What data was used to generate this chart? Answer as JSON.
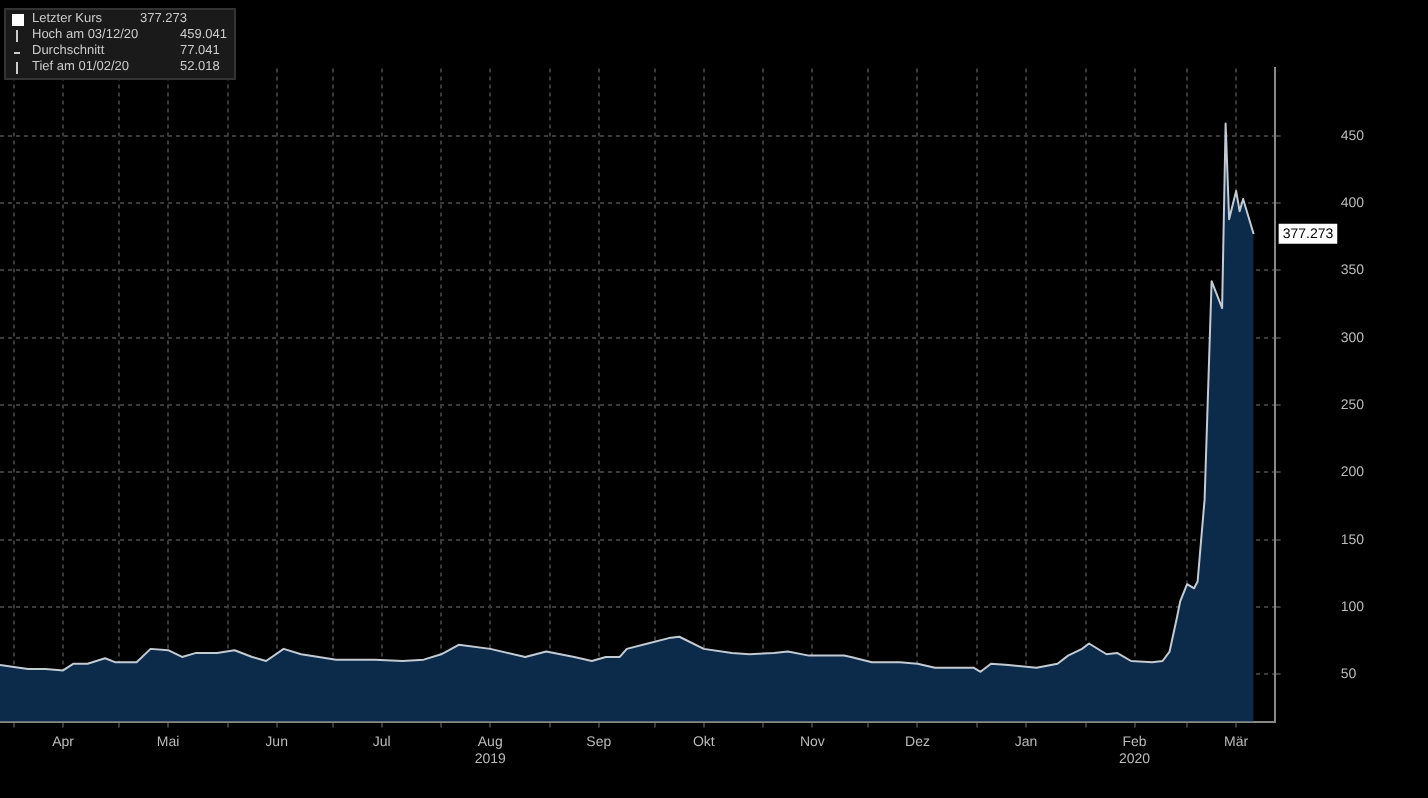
{
  "chart_data": {
    "type": "area",
    "x": [
      "2019-03-28",
      "2019-04-05",
      "2019-04-10",
      "2019-04-15",
      "2019-04-18",
      "2019-04-22",
      "2019-04-27",
      "2019-04-30",
      "2019-05-06",
      "2019-05-10",
      "2019-05-15",
      "2019-05-19",
      "2019-05-23",
      "2019-05-29",
      "2019-06-03",
      "2019-06-08",
      "2019-06-12",
      "2019-06-17",
      "2019-06-22",
      "2019-07-02",
      "2019-07-13",
      "2019-07-21",
      "2019-07-27",
      "2019-08-01",
      "2019-08-06",
      "2019-08-15",
      "2019-08-25",
      "2019-08-31",
      "2019-09-08",
      "2019-09-13",
      "2019-09-17",
      "2019-09-21",
      "2019-09-23",
      "2019-09-29",
      "2019-10-05",
      "2019-10-08",
      "2019-10-15",
      "2019-10-23",
      "2019-10-28",
      "2019-11-04",
      "2019-11-08",
      "2019-11-14",
      "2019-11-24",
      "2019-11-26",
      "2019-12-02",
      "2019-12-10",
      "2019-12-15",
      "2019-12-20",
      "2019-12-31",
      "2020-01-02",
      "2020-01-05",
      "2020-01-10",
      "2020-01-18",
      "2020-01-24",
      "2020-01-27",
      "2020-01-31",
      "2020-02-02",
      "2020-02-07",
      "2020-02-10",
      "2020-02-14",
      "2020-02-20",
      "2020-02-23",
      "2020-02-25",
      "2020-02-27",
      "2020-02-28",
      "2020-03-01",
      "2020-03-03",
      "2020-03-04",
      "2020-03-06",
      "2020-03-08",
      "2020-03-11",
      "2020-03-12",
      "2020-03-13",
      "2020-03-15",
      "2020-03-16",
      "2020-03-17",
      "2020-03-20"
    ],
    "series": [
      {
        "name": "Letzter Kurs",
        "color": "#0c2a4a",
        "values": [
          57,
          54,
          54,
          53,
          58,
          58,
          62,
          59,
          59,
          69,
          68,
          63,
          66,
          66,
          68,
          63,
          60,
          69,
          65,
          61,
          61,
          60,
          61,
          65,
          72,
          69,
          63,
          67,
          63,
          60,
          63,
          63,
          69,
          73,
          77,
          78,
          69,
          66,
          65,
          66,
          67,
          64,
          64,
          63,
          59,
          59,
          58,
          55,
          55,
          52,
          58,
          57,
          55,
          58,
          64,
          69,
          73,
          65,
          66,
          60,
          59,
          60,
          67,
          91,
          104,
          117,
          114,
          119,
          180,
          342,
          322,
          459,
          388,
          409,
          394,
          403,
          377
        ]
      }
    ],
    "xlim": [
      "2019-03-28",
      "2020-03-26"
    ],
    "xticks": [
      {
        "value": "2019-04-01",
        "label": null
      },
      {
        "value": "2019-04-15",
        "label": "Apr"
      },
      {
        "value": "2019-05-01",
        "label": null
      },
      {
        "value": "2019-05-15",
        "label": "Mai"
      },
      {
        "value": "2019-06-01",
        "label": null
      },
      {
        "value": "2019-06-15",
        "label": "Jun"
      },
      {
        "value": "2019-07-01",
        "label": null
      },
      {
        "value": "2019-07-15",
        "label": "Jul"
      },
      {
        "value": "2019-08-01",
        "label": null
      },
      {
        "value": "2019-08-15",
        "label": "Aug\n2019"
      },
      {
        "value": "2019-09-01",
        "label": null
      },
      {
        "value": "2019-09-15",
        "label": "Sep"
      },
      {
        "value": "2019-10-01",
        "label": null
      },
      {
        "value": "2019-10-15",
        "label": "Okt"
      },
      {
        "value": "2019-11-01",
        "label": null
      },
      {
        "value": "2019-11-15",
        "label": "Nov"
      },
      {
        "value": "2019-12-01",
        "label": null
      },
      {
        "value": "2019-12-15",
        "label": "Dez"
      },
      {
        "value": "2020-01-01",
        "label": null
      },
      {
        "value": "2020-01-15",
        "label": "Jan"
      },
      {
        "value": "2020-02-01",
        "label": null
      },
      {
        "value": "2020-02-15",
        "label": "Feb\n2020"
      },
      {
        "value": "2020-03-01",
        "label": null
      },
      {
        "value": "2020-03-15",
        "label": "Mär"
      }
    ],
    "ylim": [
      15,
      500
    ],
    "yticks": [
      50,
      100,
      150,
      200,
      250,
      300,
      350,
      400,
      450
    ],
    "grid": true,
    "legend": "top left",
    "annotations": [
      {
        "text": "377.273",
        "x": "2020-03-20",
        "y": 377.273
      },
      "Hoch am 03/12/20 459.041",
      "Durchschnitt 77.041",
      "Tief am 01/02/20 52.018"
    ]
  }
}
